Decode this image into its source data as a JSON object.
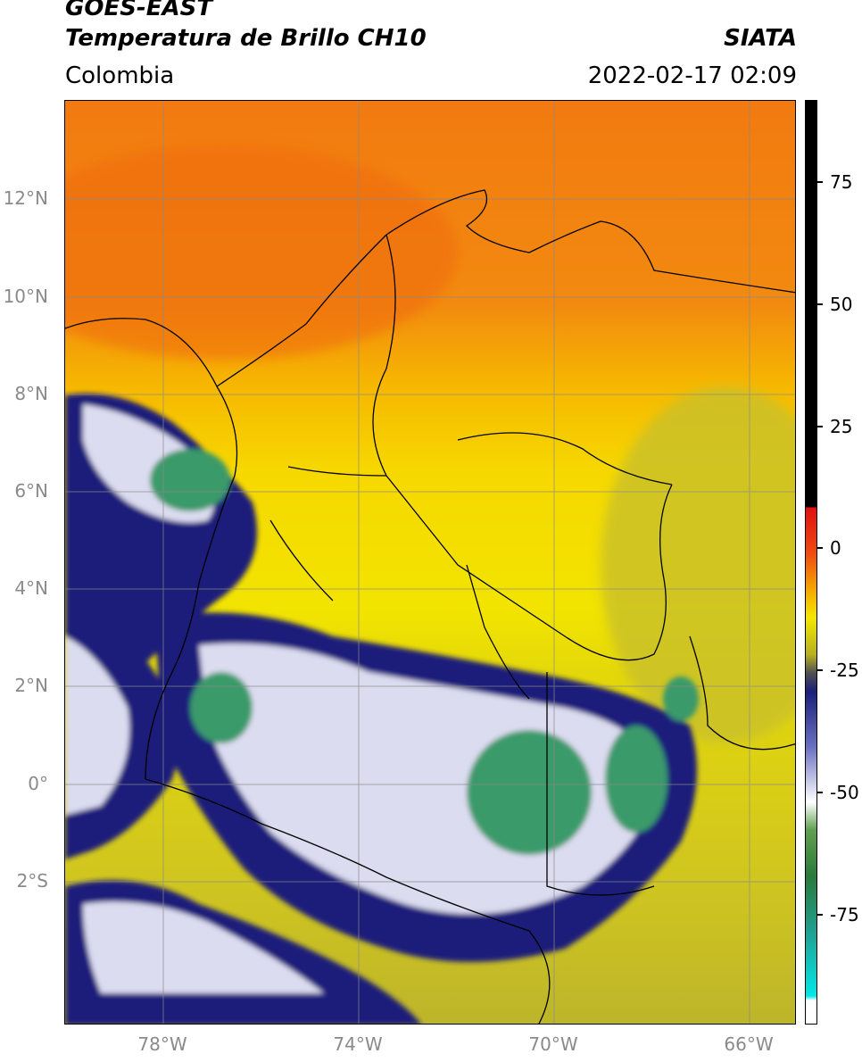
{
  "header": {
    "satellite": "GOES-EAST",
    "product": "Temperatura de Brillo CH10",
    "source": "SIATA",
    "region": "Colombia",
    "datetime": "2022-02-17 02:09"
  },
  "map": {
    "lat_ticks": [
      "12°N",
      "10°N",
      "8°N",
      "6°N",
      "4°N",
      "2°N",
      "0°",
      "2°S"
    ],
    "lon_ticks": [
      "78°W",
      "74°W",
      "70°W",
      "66°W"
    ],
    "colors": {
      "warm": "#f07a10",
      "mid": "#f4d400",
      "cool": "#bdb52a",
      "cold": "#1a1f7a",
      "colder": "#dcdcf0",
      "coldest": "#3a9a6a"
    }
  },
  "colorbar": {
    "ticks": [
      "75",
      "50",
      "25",
      "0",
      "-25",
      "-50",
      "-75"
    ]
  }
}
